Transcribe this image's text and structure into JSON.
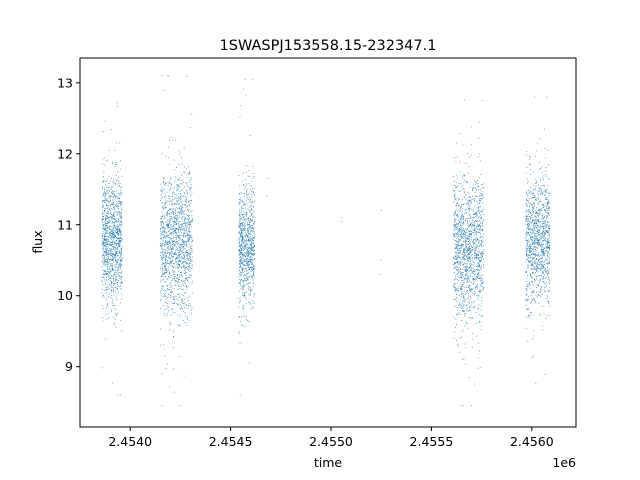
{
  "chart_data": {
    "type": "scatter",
    "title": "1SWASPJ153558.15-232347.1",
    "xlabel": "time",
    "ylabel": "flux",
    "x_offset_label": "1e6",
    "xlim": [
      2453750,
      2456220
    ],
    "ylim": [
      8.15,
      13.35
    ],
    "x_ticks": [
      {
        "value": 2454000,
        "label": "2.4540"
      },
      {
        "value": 2454500,
        "label": "2.4545"
      },
      {
        "value": 2455000,
        "label": "2.4550"
      },
      {
        "value": 2455500,
        "label": "2.4555"
      },
      {
        "value": 2456000,
        "label": "2.4560"
      }
    ],
    "y_ticks": [
      {
        "value": 9,
        "label": "9"
      },
      {
        "value": 10,
        "label": "10"
      },
      {
        "value": 11,
        "label": "11"
      },
      {
        "value": 12,
        "label": "12"
      },
      {
        "value": 13,
        "label": "13"
      }
    ],
    "grid": false,
    "legend": "none",
    "marker_color": "#1f77b4",
    "series": [
      {
        "clusters": [
          {
            "x_range": [
              2453860,
              2453960
            ],
            "y_center": 10.8,
            "y_spread": 0.45,
            "n": 1100,
            "y_min": 8.6,
            "y_max": 12.75
          },
          {
            "x_range": [
              2454150,
              2454310
            ],
            "y_center": 10.75,
            "y_spread": 0.5,
            "n": 1300,
            "y_min": 8.45,
            "y_max": 13.1
          },
          {
            "x_range": [
              2454540,
              2454620
            ],
            "y_center": 10.7,
            "y_spread": 0.4,
            "n": 800,
            "y_min": 8.6,
            "y_max": 13.05
          },
          {
            "x_range": [
              2455610,
              2455760
            ],
            "y_center": 10.65,
            "y_spread": 0.5,
            "n": 1300,
            "y_min": 8.45,
            "y_max": 12.75
          },
          {
            "x_range": [
              2455970,
              2456090
            ],
            "y_center": 10.8,
            "y_spread": 0.45,
            "n": 1100,
            "y_min": 8.45,
            "y_max": 12.8
          }
        ],
        "points": [
          {
            "x": 2454680,
            "y": 11.4
          },
          {
            "x": 2454690,
            "y": 11.65
          },
          {
            "x": 2455050,
            "y": 11.05
          },
          {
            "x": 2455052,
            "y": 11.1
          },
          {
            "x": 2455245,
            "y": 10.3
          },
          {
            "x": 2455248,
            "y": 10.5
          },
          {
            "x": 2455250,
            "y": 11.2
          }
        ]
      }
    ]
  }
}
